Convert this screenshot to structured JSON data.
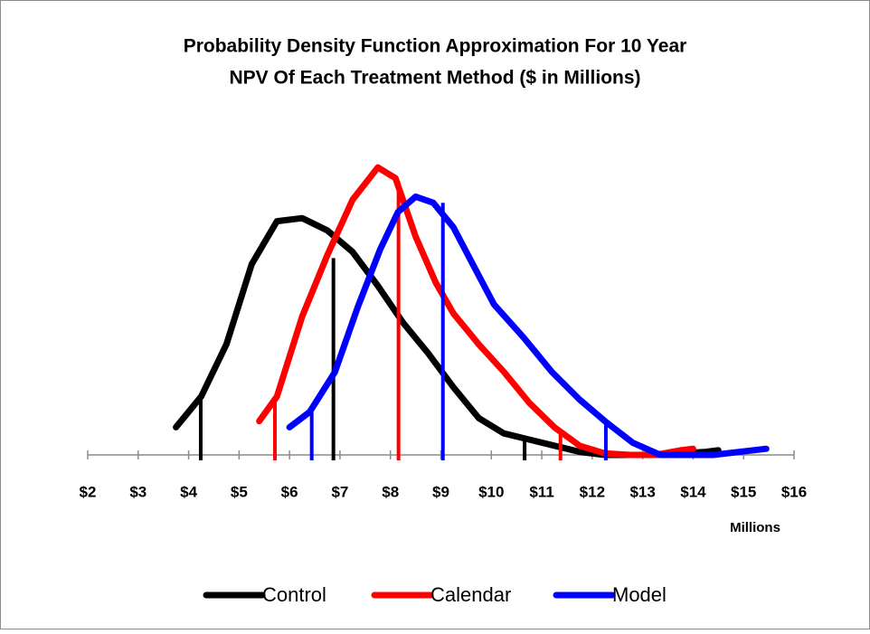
{
  "chart_data": {
    "type": "line",
    "title": [
      "Probability Density Function Approximation For 10 Year",
      "NPV Of Each Treatment Method ($ in Millions)"
    ],
    "x_axis_label": "Millions",
    "xlim": [
      2,
      16
    ],
    "xticks": [
      {
        "value": 2,
        "label": "$2"
      },
      {
        "value": 3,
        "label": "$3"
      },
      {
        "value": 4,
        "label": "$4"
      },
      {
        "value": 5,
        "label": "$5"
      },
      {
        "value": 6,
        "label": "$6"
      },
      {
        "value": 7,
        "label": "$7"
      },
      {
        "value": 8,
        "label": "$8"
      },
      {
        "value": 9,
        "label": "$9"
      },
      {
        "value": 10,
        "label": "$10"
      },
      {
        "value": 11,
        "label": "$11"
      },
      {
        "value": 12,
        "label": "$12"
      },
      {
        "value": 13,
        "label": "$13"
      },
      {
        "value": 14,
        "label": "$14"
      },
      {
        "value": 15,
        "label": "$15"
      },
      {
        "value": 16,
        "label": "$16"
      }
    ],
    "ylim": [
      0,
      1
    ],
    "legend": "bottom",
    "series": [
      {
        "name": "Control",
        "color": "#000000",
        "x": [
          3.75,
          4.25,
          4.75,
          5.25,
          5.75,
          6.25,
          6.75,
          7.25,
          7.75,
          8.25,
          8.75,
          9.25,
          9.75,
          10.25,
          10.75,
          11.25,
          11.75,
          12.25,
          12.75,
          13.25,
          13.75,
          14.25,
          14.5
        ],
        "values": [
          0.09,
          0.19,
          0.36,
          0.62,
          0.76,
          0.77,
          0.73,
          0.66,
          0.55,
          0.43,
          0.33,
          0.22,
          0.12,
          0.07,
          0.05,
          0.03,
          0.01,
          0,
          0,
          0,
          0.005,
          0.01,
          0.015
        ],
        "markers_x": [
          4.24,
          6.87,
          10.66
        ],
        "markers_values": [
          0.185,
          0.64,
          0.05
        ]
      },
      {
        "name": "Calendar",
        "color": "#ff0000",
        "x": [
          5.4,
          5.75,
          6.25,
          6.75,
          7.25,
          7.75,
          8.1,
          8.5,
          8.9,
          9.25,
          9.75,
          10.25,
          10.75,
          11.25,
          11.75,
          12.25,
          12.75,
          13.25,
          13.75,
          14.0
        ],
        "values": [
          0.11,
          0.19,
          0.45,
          0.65,
          0.83,
          0.935,
          0.9,
          0.71,
          0.56,
          0.46,
          0.36,
          0.27,
          0.17,
          0.09,
          0.03,
          0.005,
          0,
          0,
          0.015,
          0.02
        ],
        "markers_x": [
          5.71,
          8.16,
          11.37
        ],
        "markers_values": [
          0.19,
          0.89,
          0.075
        ]
      },
      {
        "name": "Model",
        "color": "#0000ff",
        "x": [
          6.0,
          6.4,
          6.9,
          7.35,
          7.8,
          8.15,
          8.5,
          8.85,
          9.25,
          9.6,
          10.05,
          10.65,
          11.2,
          11.75,
          12.25,
          12.8,
          13.35,
          14.4,
          15.45
        ],
        "values": [
          0.09,
          0.14,
          0.27,
          0.48,
          0.67,
          0.79,
          0.84,
          0.82,
          0.74,
          0.63,
          0.49,
          0.38,
          0.27,
          0.18,
          0.11,
          0.04,
          0,
          0,
          0.02
        ],
        "markers_x": [
          6.44,
          9.04,
          12.27
        ],
        "markers_values": [
          0.14,
          0.82,
          0.11
        ]
      }
    ]
  }
}
